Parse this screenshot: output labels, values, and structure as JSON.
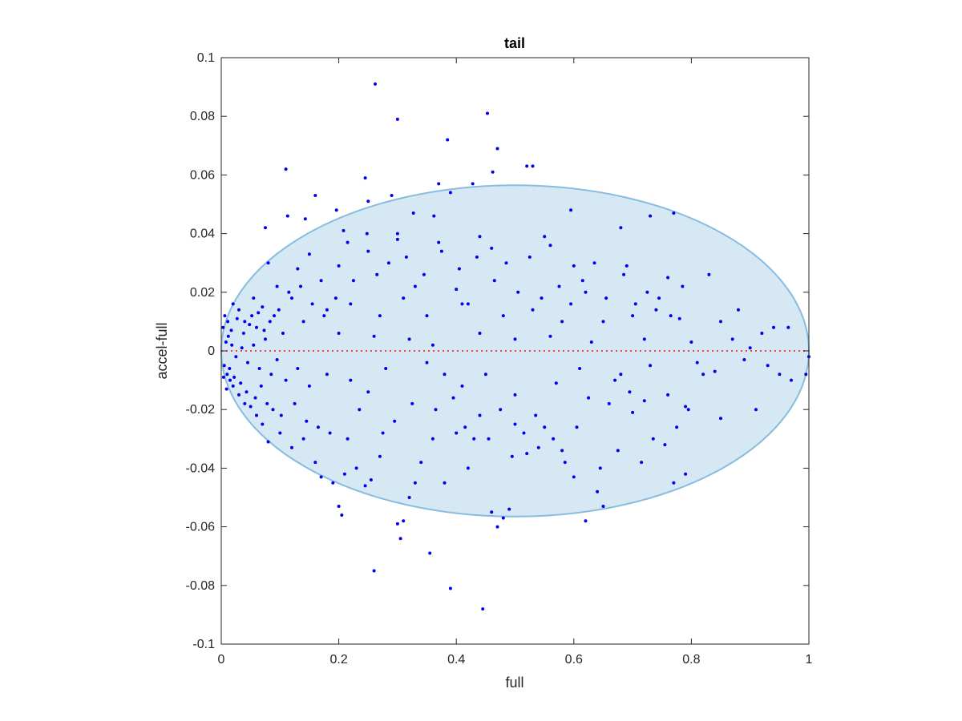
{
  "chart_data": {
    "type": "scatter",
    "title": "tail",
    "xlabel": "full",
    "ylabel": "accel-full",
    "xlim": [
      0,
      1
    ],
    "ylim": [
      -0.1,
      0.1
    ],
    "xticks": [
      "0",
      "0.2",
      "0.4",
      "0.6",
      "0.8",
      "1"
    ],
    "yticks": [
      "-0.1",
      "-0.08",
      "-0.06",
      "-0.04",
      "-0.02",
      "0",
      "0.02",
      "0.04",
      "0.06",
      "0.08",
      "0.1"
    ],
    "grid": false,
    "legend": "none",
    "ellipse": {
      "center": [
        0.5,
        0
      ],
      "radius_x": 0.5,
      "radius_y": 0.0565,
      "fill_color": "#d6e8f4",
      "edge_color": "#88bde0"
    },
    "reference_line": {
      "y": 0,
      "style": "dotted",
      "color": "#ff3b3b"
    },
    "marker_color": "#0000ee",
    "series": [
      {
        "points": [
          [
            0.262,
            0.091
          ],
          [
            0.453,
            0.081
          ],
          [
            0.3,
            0.079
          ],
          [
            0.385,
            0.072
          ],
          [
            0.47,
            0.069
          ],
          [
            0.52,
            0.063
          ],
          [
            0.53,
            0.063
          ],
          [
            0.11,
            0.062
          ],
          [
            0.462,
            0.061
          ],
          [
            0.245,
            0.059
          ],
          [
            0.37,
            0.057
          ],
          [
            0.428,
            0.057
          ],
          [
            0.39,
            0.054
          ],
          [
            0.16,
            0.053
          ],
          [
            0.29,
            0.053
          ],
          [
            0.25,
            0.051
          ],
          [
            0.143,
            0.045
          ],
          [
            0.113,
            0.046
          ],
          [
            0.196,
            0.048
          ],
          [
            0.595,
            0.048
          ],
          [
            0.77,
            0.047
          ],
          [
            0.327,
            0.047
          ],
          [
            0.73,
            0.046
          ],
          [
            0.362,
            0.046
          ],
          [
            0.075,
            0.042
          ],
          [
            0.68,
            0.042
          ],
          [
            0.208,
            0.041
          ],
          [
            0.3,
            0.04
          ],
          [
            0.248,
            0.04
          ],
          [
            0.215,
            0.037
          ],
          [
            0.44,
            0.039
          ],
          [
            0.55,
            0.039
          ],
          [
            0.56,
            0.036
          ],
          [
            0.3,
            0.038
          ],
          [
            0.15,
            0.033
          ],
          [
            0.2,
            0.029
          ],
          [
            0.17,
            0.024
          ],
          [
            0.13,
            0.028
          ],
          [
            0.08,
            0.03
          ],
          [
            0.095,
            0.022
          ],
          [
            0.25,
            0.034
          ],
          [
            0.46,
            0.035
          ],
          [
            0.37,
            0.037
          ],
          [
            0.33,
            0.022
          ],
          [
            0.4,
            0.021
          ],
          [
            0.41,
            0.016
          ],
          [
            0.6,
            0.029
          ],
          [
            0.62,
            0.02
          ],
          [
            0.69,
            0.029
          ],
          [
            0.76,
            0.025
          ],
          [
            0.83,
            0.026
          ],
          [
            0.055,
            0.018
          ],
          [
            0.052,
            0.012
          ],
          [
            0.06,
            0.008
          ],
          [
            0.02,
            0.016
          ],
          [
            0.03,
            0.014
          ],
          [
            0.04,
            0.01
          ],
          [
            0.07,
            0.015
          ],
          [
            0.09,
            0.012
          ],
          [
            0.12,
            0.018
          ],
          [
            0.105,
            0.006
          ],
          [
            0.14,
            0.01
          ],
          [
            0.18,
            0.014
          ],
          [
            0.22,
            0.016
          ],
          [
            0.27,
            0.012
          ],
          [
            0.31,
            0.018
          ],
          [
            0.35,
            0.012
          ],
          [
            0.42,
            0.016
          ],
          [
            0.48,
            0.012
          ],
          [
            0.53,
            0.014
          ],
          [
            0.58,
            0.01
          ],
          [
            0.65,
            0.01
          ],
          [
            0.7,
            0.012
          ],
          [
            0.74,
            0.014
          ],
          [
            0.78,
            0.011
          ],
          [
            0.85,
            0.01
          ],
          [
            0.88,
            0.014
          ],
          [
            0.92,
            0.006
          ],
          [
            0.94,
            0.008
          ],
          [
            0.965,
            0.008
          ],
          [
            0.2,
            0.006
          ],
          [
            0.26,
            0.005
          ],
          [
            0.32,
            0.004
          ],
          [
            0.36,
            0.002
          ],
          [
            0.44,
            0.006
          ],
          [
            0.5,
            0.004
          ],
          [
            0.56,
            0.005
          ],
          [
            0.63,
            0.003
          ],
          [
            0.72,
            0.004
          ],
          [
            0.8,
            0.003
          ],
          [
            0.87,
            0.004
          ],
          [
            0.9,
            0.001
          ],
          [
            1.0,
            -0.002
          ],
          [
            0.995,
            -0.008
          ],
          [
            0.97,
            -0.01
          ],
          [
            0.95,
            -0.008
          ],
          [
            0.91,
            -0.02
          ],
          [
            0.85,
            -0.023
          ],
          [
            0.82,
            -0.008
          ],
          [
            0.79,
            -0.019
          ],
          [
            0.77,
            -0.045
          ],
          [
            0.79,
            -0.042
          ],
          [
            0.76,
            -0.015
          ],
          [
            0.72,
            -0.017
          ],
          [
            0.7,
            -0.021
          ],
          [
            0.68,
            -0.008
          ],
          [
            0.66,
            -0.018
          ],
          [
            0.65,
            -0.053
          ],
          [
            0.64,
            -0.048
          ],
          [
            0.62,
            -0.058
          ],
          [
            0.6,
            -0.043
          ],
          [
            0.58,
            -0.034
          ],
          [
            0.55,
            -0.026
          ],
          [
            0.54,
            -0.033
          ],
          [
            0.52,
            -0.035
          ],
          [
            0.5,
            -0.025
          ],
          [
            0.49,
            -0.054
          ],
          [
            0.48,
            -0.057
          ],
          [
            0.47,
            -0.06
          ],
          [
            0.46,
            -0.055
          ],
          [
            0.44,
            -0.022
          ],
          [
            0.43,
            -0.03
          ],
          [
            0.42,
            -0.04
          ],
          [
            0.4,
            -0.028
          ],
          [
            0.38,
            -0.045
          ],
          [
            0.36,
            -0.03
          ],
          [
            0.355,
            -0.069
          ],
          [
            0.34,
            -0.038
          ],
          [
            0.33,
            -0.045
          ],
          [
            0.32,
            -0.05
          ],
          [
            0.31,
            -0.058
          ],
          [
            0.305,
            -0.064
          ],
          [
            0.3,
            -0.059
          ],
          [
            0.26,
            -0.075
          ],
          [
            0.39,
            -0.081
          ],
          [
            0.445,
            -0.088
          ],
          [
            0.2,
            -0.053
          ],
          [
            0.205,
            -0.056
          ],
          [
            0.245,
            -0.046
          ],
          [
            0.255,
            -0.044
          ],
          [
            0.27,
            -0.036
          ],
          [
            0.23,
            -0.04
          ],
          [
            0.21,
            -0.042
          ],
          [
            0.19,
            -0.045
          ],
          [
            0.17,
            -0.043
          ],
          [
            0.16,
            -0.038
          ],
          [
            0.14,
            -0.03
          ],
          [
            0.12,
            -0.033
          ],
          [
            0.1,
            -0.028
          ],
          [
            0.08,
            -0.031
          ],
          [
            0.07,
            -0.025
          ],
          [
            0.06,
            -0.022
          ],
          [
            0.05,
            -0.019
          ],
          [
            0.04,
            -0.018
          ],
          [
            0.03,
            -0.015
          ],
          [
            0.02,
            -0.012
          ],
          [
            0.015,
            -0.01
          ],
          [
            0.01,
            -0.008
          ],
          [
            0.005,
            -0.005
          ],
          [
            0.008,
            0.003
          ],
          [
            0.012,
            0.005
          ],
          [
            0.018,
            0.002
          ],
          [
            0.025,
            -0.002
          ],
          [
            0.035,
            0.001
          ],
          [
            0.045,
            -0.004
          ],
          [
            0.055,
            0.002
          ],
          [
            0.065,
            -0.006
          ],
          [
            0.075,
            0.004
          ],
          [
            0.085,
            -0.008
          ],
          [
            0.095,
            -0.003
          ],
          [
            0.11,
            -0.01
          ],
          [
            0.13,
            -0.006
          ],
          [
            0.15,
            -0.012
          ],
          [
            0.18,
            -0.008
          ],
          [
            0.22,
            -0.01
          ],
          [
            0.25,
            -0.014
          ],
          [
            0.28,
            -0.006
          ],
          [
            0.35,
            -0.004
          ],
          [
            0.38,
            -0.008
          ],
          [
            0.41,
            -0.012
          ],
          [
            0.45,
            -0.008
          ],
          [
            0.5,
            -0.015
          ],
          [
            0.57,
            -0.011
          ],
          [
            0.61,
            -0.006
          ],
          [
            0.67,
            -0.01
          ],
          [
            0.73,
            -0.005
          ],
          [
            0.81,
            -0.004
          ],
          [
            0.84,
            -0.007
          ],
          [
            0.89,
            -0.003
          ],
          [
            0.93,
            -0.005
          ],
          [
            0.003,
            0.008
          ],
          [
            0.004,
            -0.009
          ],
          [
            0.006,
            0.012
          ],
          [
            0.009,
            -0.013
          ],
          [
            0.011,
            0.01
          ],
          [
            0.014,
            -0.006
          ],
          [
            0.017,
            0.007
          ],
          [
            0.022,
            -0.009
          ],
          [
            0.027,
            0.011
          ],
          [
            0.033,
            -0.011
          ],
          [
            0.038,
            0.006
          ],
          [
            0.043,
            -0.014
          ],
          [
            0.048,
            0.009
          ],
          [
            0.058,
            -0.016
          ],
          [
            0.063,
            0.013
          ],
          [
            0.068,
            -0.012
          ],
          [
            0.073,
            0.007
          ],
          [
            0.078,
            -0.018
          ],
          [
            0.083,
            0.01
          ],
          [
            0.088,
            -0.02
          ],
          [
            0.098,
            0.014
          ],
          [
            0.102,
            -0.022
          ],
          [
            0.115,
            0.02
          ],
          [
            0.125,
            -0.018
          ],
          [
            0.135,
            0.022
          ],
          [
            0.145,
            -0.024
          ],
          [
            0.155,
            0.016
          ],
          [
            0.165,
            -0.026
          ],
          [
            0.175,
            0.012
          ],
          [
            0.185,
            -0.028
          ],
          [
            0.195,
            0.018
          ],
          [
            0.215,
            -0.03
          ],
          [
            0.225,
            0.024
          ],
          [
            0.235,
            -0.02
          ],
          [
            0.265,
            0.026
          ],
          [
            0.275,
            -0.028
          ],
          [
            0.285,
            0.03
          ],
          [
            0.295,
            -0.024
          ],
          [
            0.315,
            0.032
          ],
          [
            0.325,
            -0.018
          ],
          [
            0.345,
            0.026
          ],
          [
            0.365,
            -0.02
          ],
          [
            0.375,
            0.034
          ],
          [
            0.395,
            -0.016
          ],
          [
            0.405,
            0.028
          ],
          [
            0.415,
            -0.026
          ],
          [
            0.435,
            0.032
          ],
          [
            0.455,
            -0.03
          ],
          [
            0.465,
            0.024
          ],
          [
            0.475,
            -0.02
          ],
          [
            0.485,
            0.03
          ],
          [
            0.495,
            -0.036
          ],
          [
            0.505,
            0.02
          ],
          [
            0.515,
            -0.028
          ],
          [
            0.525,
            0.032
          ],
          [
            0.535,
            -0.022
          ],
          [
            0.545,
            0.018
          ],
          [
            0.565,
            -0.03
          ],
          [
            0.575,
            0.022
          ],
          [
            0.585,
            -0.038
          ],
          [
            0.595,
            0.016
          ],
          [
            0.605,
            -0.026
          ],
          [
            0.615,
            0.024
          ],
          [
            0.625,
            -0.016
          ],
          [
            0.635,
            0.03
          ],
          [
            0.645,
            -0.04
          ],
          [
            0.655,
            0.018
          ],
          [
            0.675,
            -0.034
          ],
          [
            0.685,
            0.026
          ],
          [
            0.695,
            -0.014
          ],
          [
            0.705,
            0.016
          ],
          [
            0.715,
            -0.038
          ],
          [
            0.725,
            0.02
          ],
          [
            0.735,
            -0.03
          ],
          [
            0.745,
            0.018
          ],
          [
            0.755,
            -0.032
          ],
          [
            0.765,
            0.012
          ],
          [
            0.775,
            -0.026
          ],
          [
            0.785,
            0.022
          ],
          [
            0.795,
            -0.02
          ]
        ]
      }
    ]
  }
}
